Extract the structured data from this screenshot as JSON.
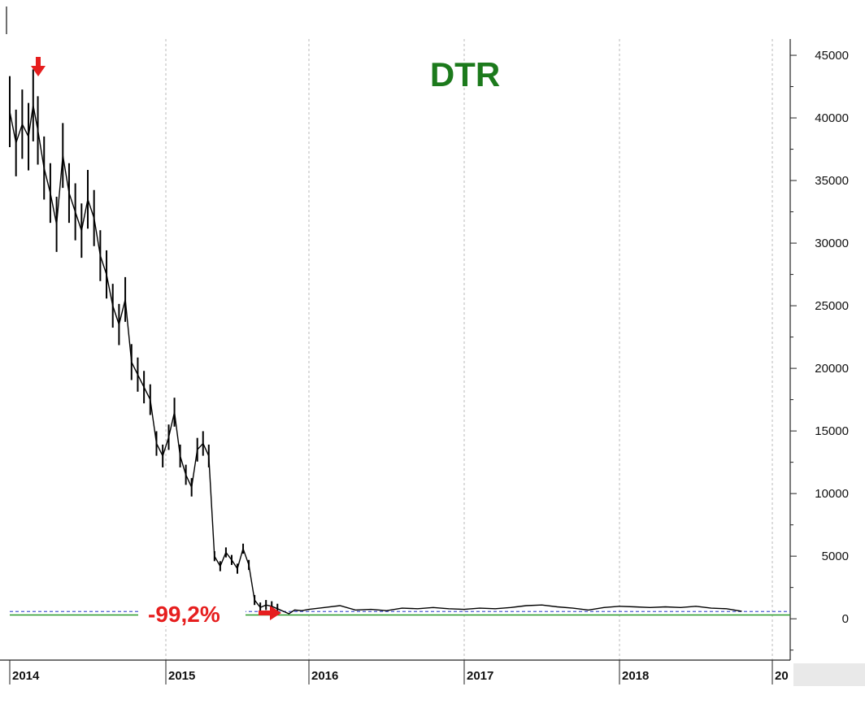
{
  "chart_data": {
    "type": "line",
    "title": "DTR",
    "xlabel": "",
    "ylabel": "",
    "x_ticks": [
      "2014",
      "2015",
      "2016",
      "2017",
      "2018",
      "20"
    ],
    "y_ticks": [
      "45000",
      "40000",
      "35000",
      "30000",
      "25000",
      "20000",
      "15000",
      "10000",
      "5000",
      "0"
    ],
    "ylim": [
      -3300,
      46300
    ],
    "xlim": [
      2014.0,
      2019.05
    ],
    "grid": "vertical dotted lines at year boundaries",
    "y_axis_position": "right",
    "annotation": "-99,2%",
    "colors": {
      "price": "#000000",
      "support_line": "#2a9a2a",
      "dashed_line": "#4a5ad0",
      "annotation": "#e61e1e",
      "title": "#1c7a1c"
    },
    "support_level": 300,
    "series": [
      {
        "values_x": [
          2014.0,
          2014.04,
          2014.08,
          2014.12,
          2014.15,
          2014.18,
          2014.22,
          2014.26,
          2014.3,
          2014.34,
          2014.38,
          2014.42,
          2014.46,
          2014.5,
          2014.54,
          2014.58,
          2014.62,
          2014.66,
          2014.7,
          2014.74,
          2014.78,
          2014.82,
          2014.86,
          2014.9,
          2014.94,
          2014.98,
          2015.02,
          2015.06,
          2015.1,
          2015.14,
          2015.18,
          2015.22,
          2015.26,
          2015.3,
          2015.34,
          2015.38,
          2015.42,
          2015.46,
          2015.5,
          2015.54,
          2015.58,
          2015.62,
          2015.66,
          2015.7,
          2015.74,
          2015.78,
          2015.82,
          2015.86,
          2015.9,
          2015.95,
          2016.0,
          2016.1,
          2016.2,
          2016.3,
          2016.4,
          2016.5,
          2016.6,
          2016.7,
          2016.8,
          2016.9,
          2017.0,
          2017.1,
          2017.2,
          2017.3,
          2017.4,
          2017.5,
          2017.6,
          2017.7,
          2017.8,
          2017.9,
          2018.0,
          2018.1,
          2018.2,
          2018.3,
          2018.4,
          2018.5,
          2018.6,
          2018.7,
          2018.8
        ],
        "values": [
          40500,
          38000,
          39500,
          38500,
          41000,
          39000,
          36000,
          34000,
          31500,
          37000,
          34000,
          32500,
          31000,
          33500,
          32000,
          29000,
          27500,
          25000,
          23500,
          25500,
          20500,
          19500,
          18500,
          17500,
          14000,
          13000,
          14500,
          16500,
          13000,
          11500,
          10500,
          13500,
          14000,
          13000,
          5000,
          4200,
          5300,
          4700,
          4000,
          5600,
          4300,
          1500,
          900,
          1100,
          1000,
          800,
          600,
          400,
          700,
          650,
          750,
          900,
          1050,
          700,
          750,
          650,
          850,
          800,
          900,
          800,
          750,
          850,
          800,
          900,
          1050,
          1100,
          950,
          850,
          700,
          900,
          1000,
          950,
          900,
          950,
          900,
          1000,
          850,
          800,
          600
        ]
      }
    ]
  }
}
